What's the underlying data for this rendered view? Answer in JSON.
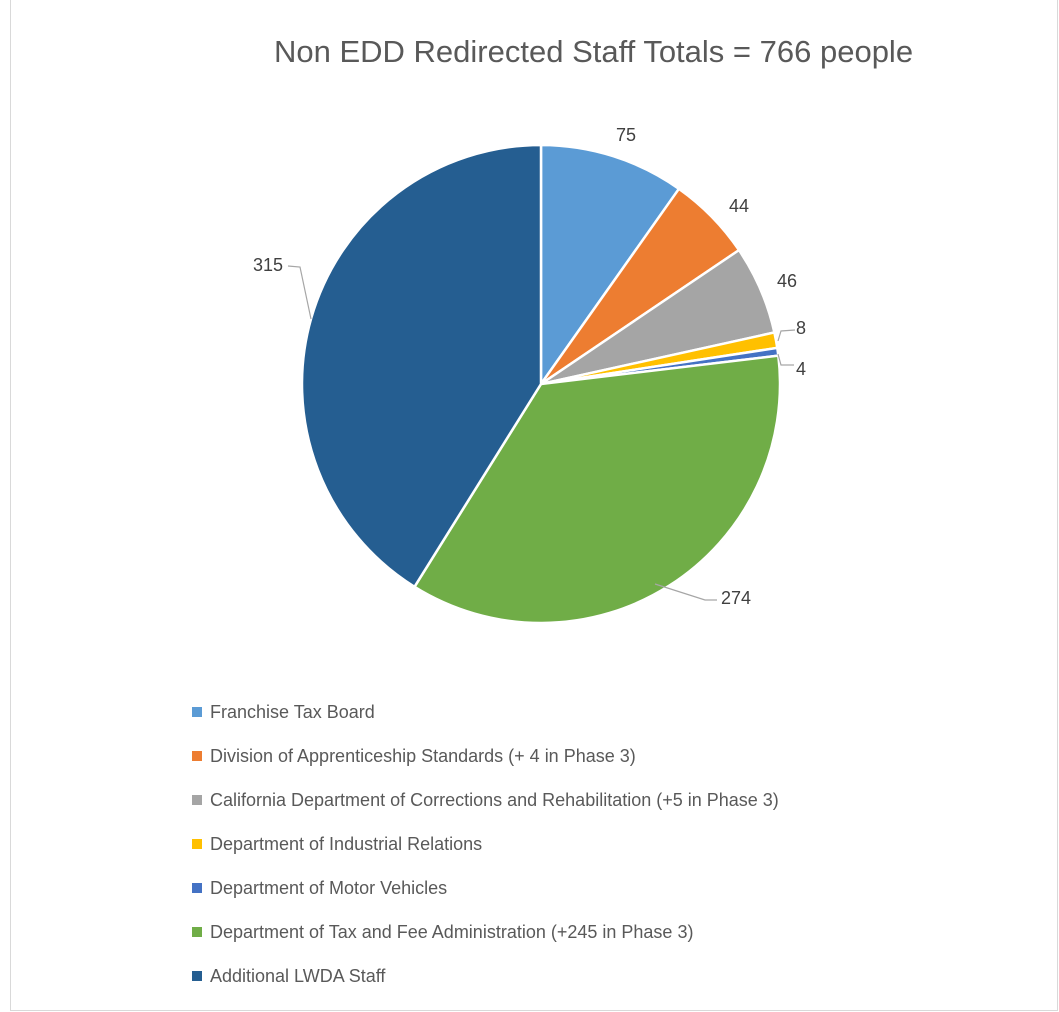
{
  "chart_data": {
    "type": "pie",
    "title": "Non EDD Redirected Staff Totals = 766 people",
    "legend_position": "bottom",
    "slices": [
      {
        "label": "Franchise Tax Board",
        "value": 75,
        "data_label": "75",
        "color": "#5B9BD5"
      },
      {
        "label": "Division of Apprenticeship Standards (+ 4 in Phase 3)",
        "value": 44,
        "data_label": "44",
        "color": "#ED7D31"
      },
      {
        "label": "California Department of Corrections and Rehabilitation (+5 in Phase 3)",
        "value": 46,
        "data_label": "46",
        "color": "#A5A5A5"
      },
      {
        "label": "Department of Industrial Relations",
        "value": 8,
        "data_label": "8",
        "color": "#FFC000"
      },
      {
        "label": "Department of Motor Vehicles",
        "value": 4,
        "data_label": "4",
        "color": "#4472C4"
      },
      {
        "label": "Department of Tax and Fee Administration (+245 in Phase 3)",
        "value": 274,
        "data_label": "274",
        "color": "#70AD47"
      },
      {
        "label": "Additional LWDA Staff",
        "value": 315,
        "data_label": "315",
        "color": "#255E91"
      }
    ]
  }
}
